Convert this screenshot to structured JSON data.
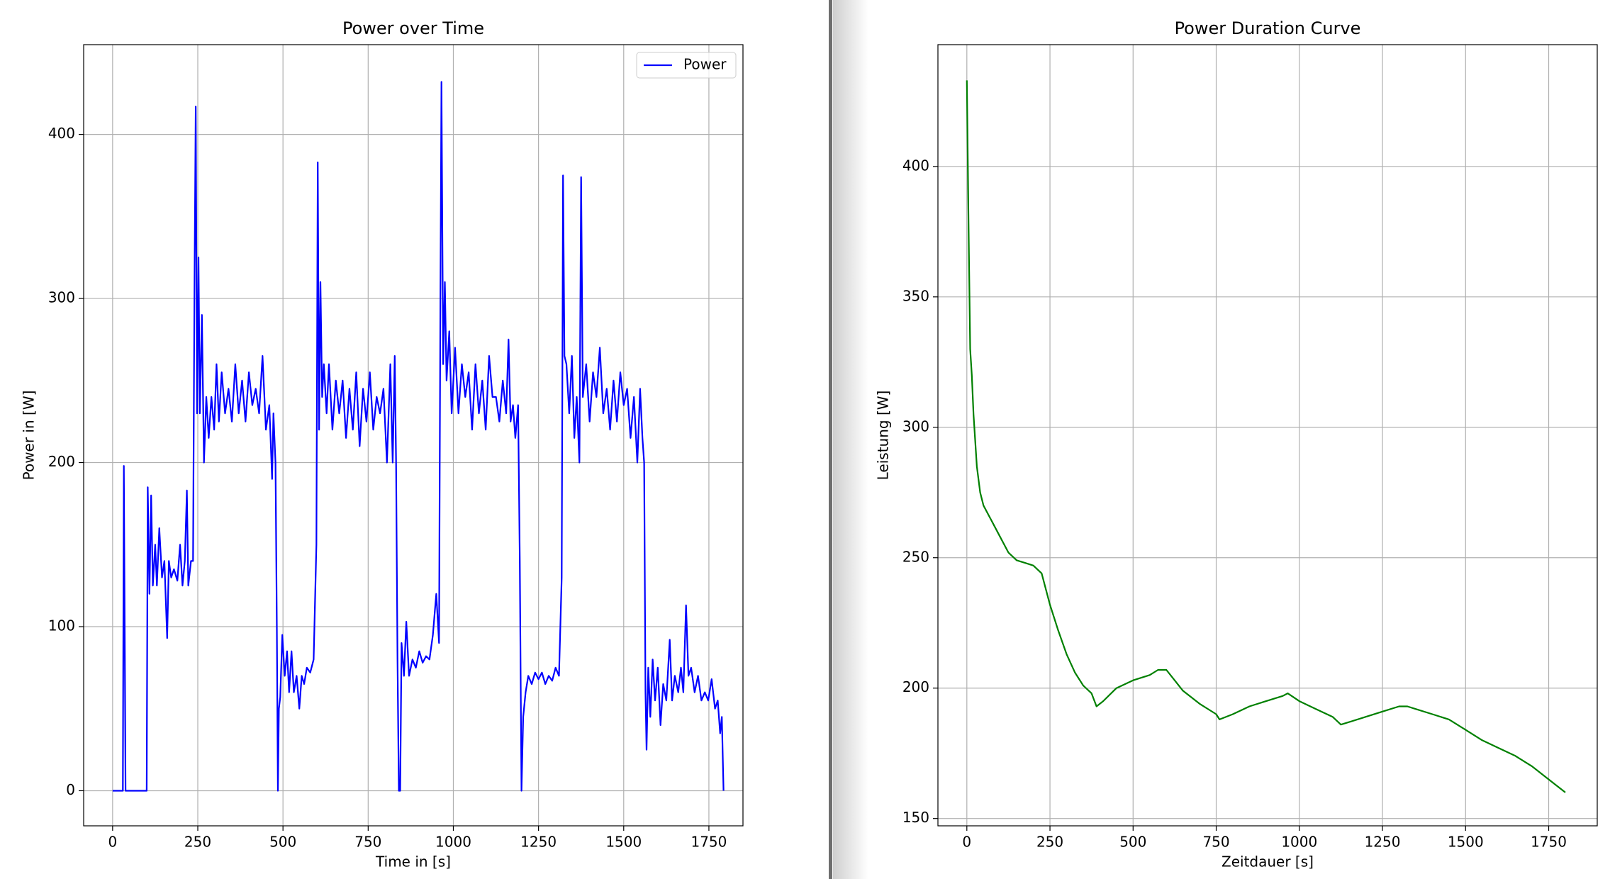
{
  "chart_data": [
    {
      "type": "line",
      "title": "Power over Time",
      "xlabel": "Time in [s]",
      "ylabel": "Power in [W]",
      "grid": true,
      "legend": "upper right",
      "xlim": [
        -85,
        1850
      ],
      "ylim": [
        -21.4,
        454.7
      ],
      "xticks": [
        0,
        250,
        500,
        750,
        1000,
        1250,
        1500,
        1750
      ],
      "yticks": [
        0,
        100,
        200,
        300,
        400
      ],
      "x": [
        0,
        30,
        33,
        38,
        100,
        103,
        108,
        113,
        118,
        125,
        130,
        137,
        145,
        152,
        160,
        165,
        172,
        180,
        190,
        198,
        205,
        212,
        218,
        222,
        230,
        236,
        240,
        244,
        248,
        252,
        256,
        262,
        268,
        275,
        282,
        290,
        298,
        305,
        312,
        320,
        330,
        340,
        350,
        360,
        370,
        380,
        390,
        400,
        410,
        420,
        430,
        440,
        450,
        460,
        468,
        472,
        478,
        482,
        485,
        488,
        492,
        498,
        505,
        512,
        518,
        525,
        532,
        540,
        548,
        555,
        562,
        570,
        580,
        590,
        598,
        602,
        606,
        610,
        615,
        620,
        628,
        635,
        645,
        655,
        665,
        675,
        685,
        695,
        705,
        715,
        725,
        735,
        745,
        755,
        765,
        775,
        785,
        795,
        805,
        815,
        822,
        828,
        832,
        836,
        840,
        844,
        848,
        855,
        862,
        870,
        880,
        890,
        900,
        910,
        920,
        930,
        940,
        950,
        958,
        962,
        965,
        970,
        975,
        980,
        988,
        995,
        1005,
        1015,
        1025,
        1035,
        1045,
        1055,
        1065,
        1075,
        1085,
        1095,
        1105,
        1115,
        1125,
        1135,
        1145,
        1155,
        1162,
        1168,
        1175,
        1182,
        1190,
        1195,
        1200,
        1205,
        1212,
        1220,
        1230,
        1240,
        1250,
        1260,
        1270,
        1280,
        1290,
        1300,
        1310,
        1318,
        1322,
        1326,
        1332,
        1340,
        1348,
        1355,
        1362,
        1370,
        1375,
        1380,
        1390,
        1400,
        1410,
        1420,
        1430,
        1440,
        1450,
        1460,
        1470,
        1480,
        1490,
        1500,
        1510,
        1520,
        1530,
        1540,
        1548,
        1555,
        1560,
        1564,
        1567,
        1572,
        1578,
        1585,
        1592,
        1600,
        1608,
        1616,
        1625,
        1635,
        1642,
        1650,
        1660,
        1668,
        1675,
        1683,
        1690,
        1698,
        1708,
        1718,
        1728,
        1738,
        1748,
        1758,
        1768,
        1776,
        1783,
        1788,
        1793
      ],
      "series": [
        {
          "name": "Power",
          "color": "#0000ff",
          "values": [
            0,
            0,
            198,
            0,
            0,
            185,
            120,
            180,
            125,
            150,
            125,
            160,
            130,
            140,
            93,
            140,
            130,
            135,
            128,
            150,
            125,
            140,
            183,
            125,
            140,
            140,
            300,
            417,
            230,
            325,
            230,
            290,
            200,
            240,
            215,
            240,
            220,
            260,
            225,
            255,
            230,
            245,
            225,
            260,
            230,
            250,
            225,
            255,
            235,
            245,
            230,
            265,
            220,
            235,
            190,
            230,
            200,
            100,
            0,
            50,
            57,
            95,
            70,
            85,
            60,
            85,
            60,
            70,
            50,
            70,
            65,
            75,
            72,
            80,
            150,
            383,
            220,
            310,
            240,
            260,
            230,
            260,
            220,
            250,
            230,
            250,
            215,
            245,
            220,
            255,
            210,
            245,
            225,
            255,
            220,
            240,
            230,
            245,
            200,
            260,
            200,
            265,
            200,
            80,
            0,
            0,
            90,
            70,
            103,
            70,
            80,
            75,
            85,
            78,
            82,
            80,
            95,
            120,
            90,
            300,
            432,
            260,
            310,
            250,
            280,
            230,
            270,
            230,
            260,
            240,
            255,
            220,
            260,
            230,
            250,
            220,
            265,
            240,
            240,
            225,
            250,
            230,
            275,
            225,
            235,
            215,
            235,
            140,
            0,
            45,
            60,
            70,
            65,
            72,
            68,
            72,
            65,
            70,
            67,
            75,
            70,
            130,
            375,
            265,
            260,
            230,
            265,
            215,
            240,
            200,
            374,
            240,
            260,
            225,
            255,
            240,
            270,
            230,
            245,
            220,
            250,
            225,
            255,
            235,
            245,
            215,
            240,
            200,
            245,
            215,
            200,
            60,
            25,
            75,
            45,
            80,
            55,
            75,
            40,
            65,
            55,
            92,
            55,
            70,
            60,
            75,
            60,
            113,
            70,
            75,
            60,
            70,
            55,
            60,
            55,
            68,
            50,
            55,
            35,
            45,
            0
          ]
        }
      ]
    },
    {
      "type": "line",
      "title": "Power Duration Curve",
      "xlabel": "Zeitdauer [s]",
      "ylabel": "Leistung [W]",
      "grid": true,
      "xlim": [
        -87,
        1896
      ],
      "ylim": [
        147.2,
        446.7
      ],
      "xticks": [
        0,
        250,
        500,
        750,
        1000,
        1250,
        1500,
        1750
      ],
      "yticks": [
        150,
        200,
        250,
        300,
        350,
        400
      ],
      "x": [
        0,
        5,
        10,
        15,
        20,
        30,
        40,
        50,
        75,
        100,
        125,
        150,
        175,
        200,
        225,
        250,
        275,
        300,
        325,
        350,
        375,
        390,
        410,
        450,
        500,
        550,
        575,
        600,
        625,
        650,
        700,
        750,
        760,
        800,
        850,
        900,
        950,
        965,
        1000,
        1050,
        1100,
        1125,
        1150,
        1200,
        1250,
        1300,
        1325,
        1350,
        1400,
        1450,
        1500,
        1550,
        1600,
        1650,
        1700,
        1750,
        1800
      ],
      "series": [
        {
          "color": "#008000",
          "values": [
            433,
            380,
            330,
            320,
            305,
            285,
            275,
            270,
            264,
            258,
            252,
            249,
            248,
            247,
            244,
            232,
            222,
            213,
            206,
            201,
            198,
            193,
            195,
            200,
            203,
            205,
            207,
            207,
            203,
            199,
            194,
            190,
            188,
            190,
            193,
            195,
            197,
            198,
            195,
            192,
            189,
            186,
            187,
            189,
            191,
            193,
            193,
            192,
            190,
            188,
            184,
            180,
            177,
            174,
            170,
            165,
            160
          ]
        }
      ]
    }
  ]
}
